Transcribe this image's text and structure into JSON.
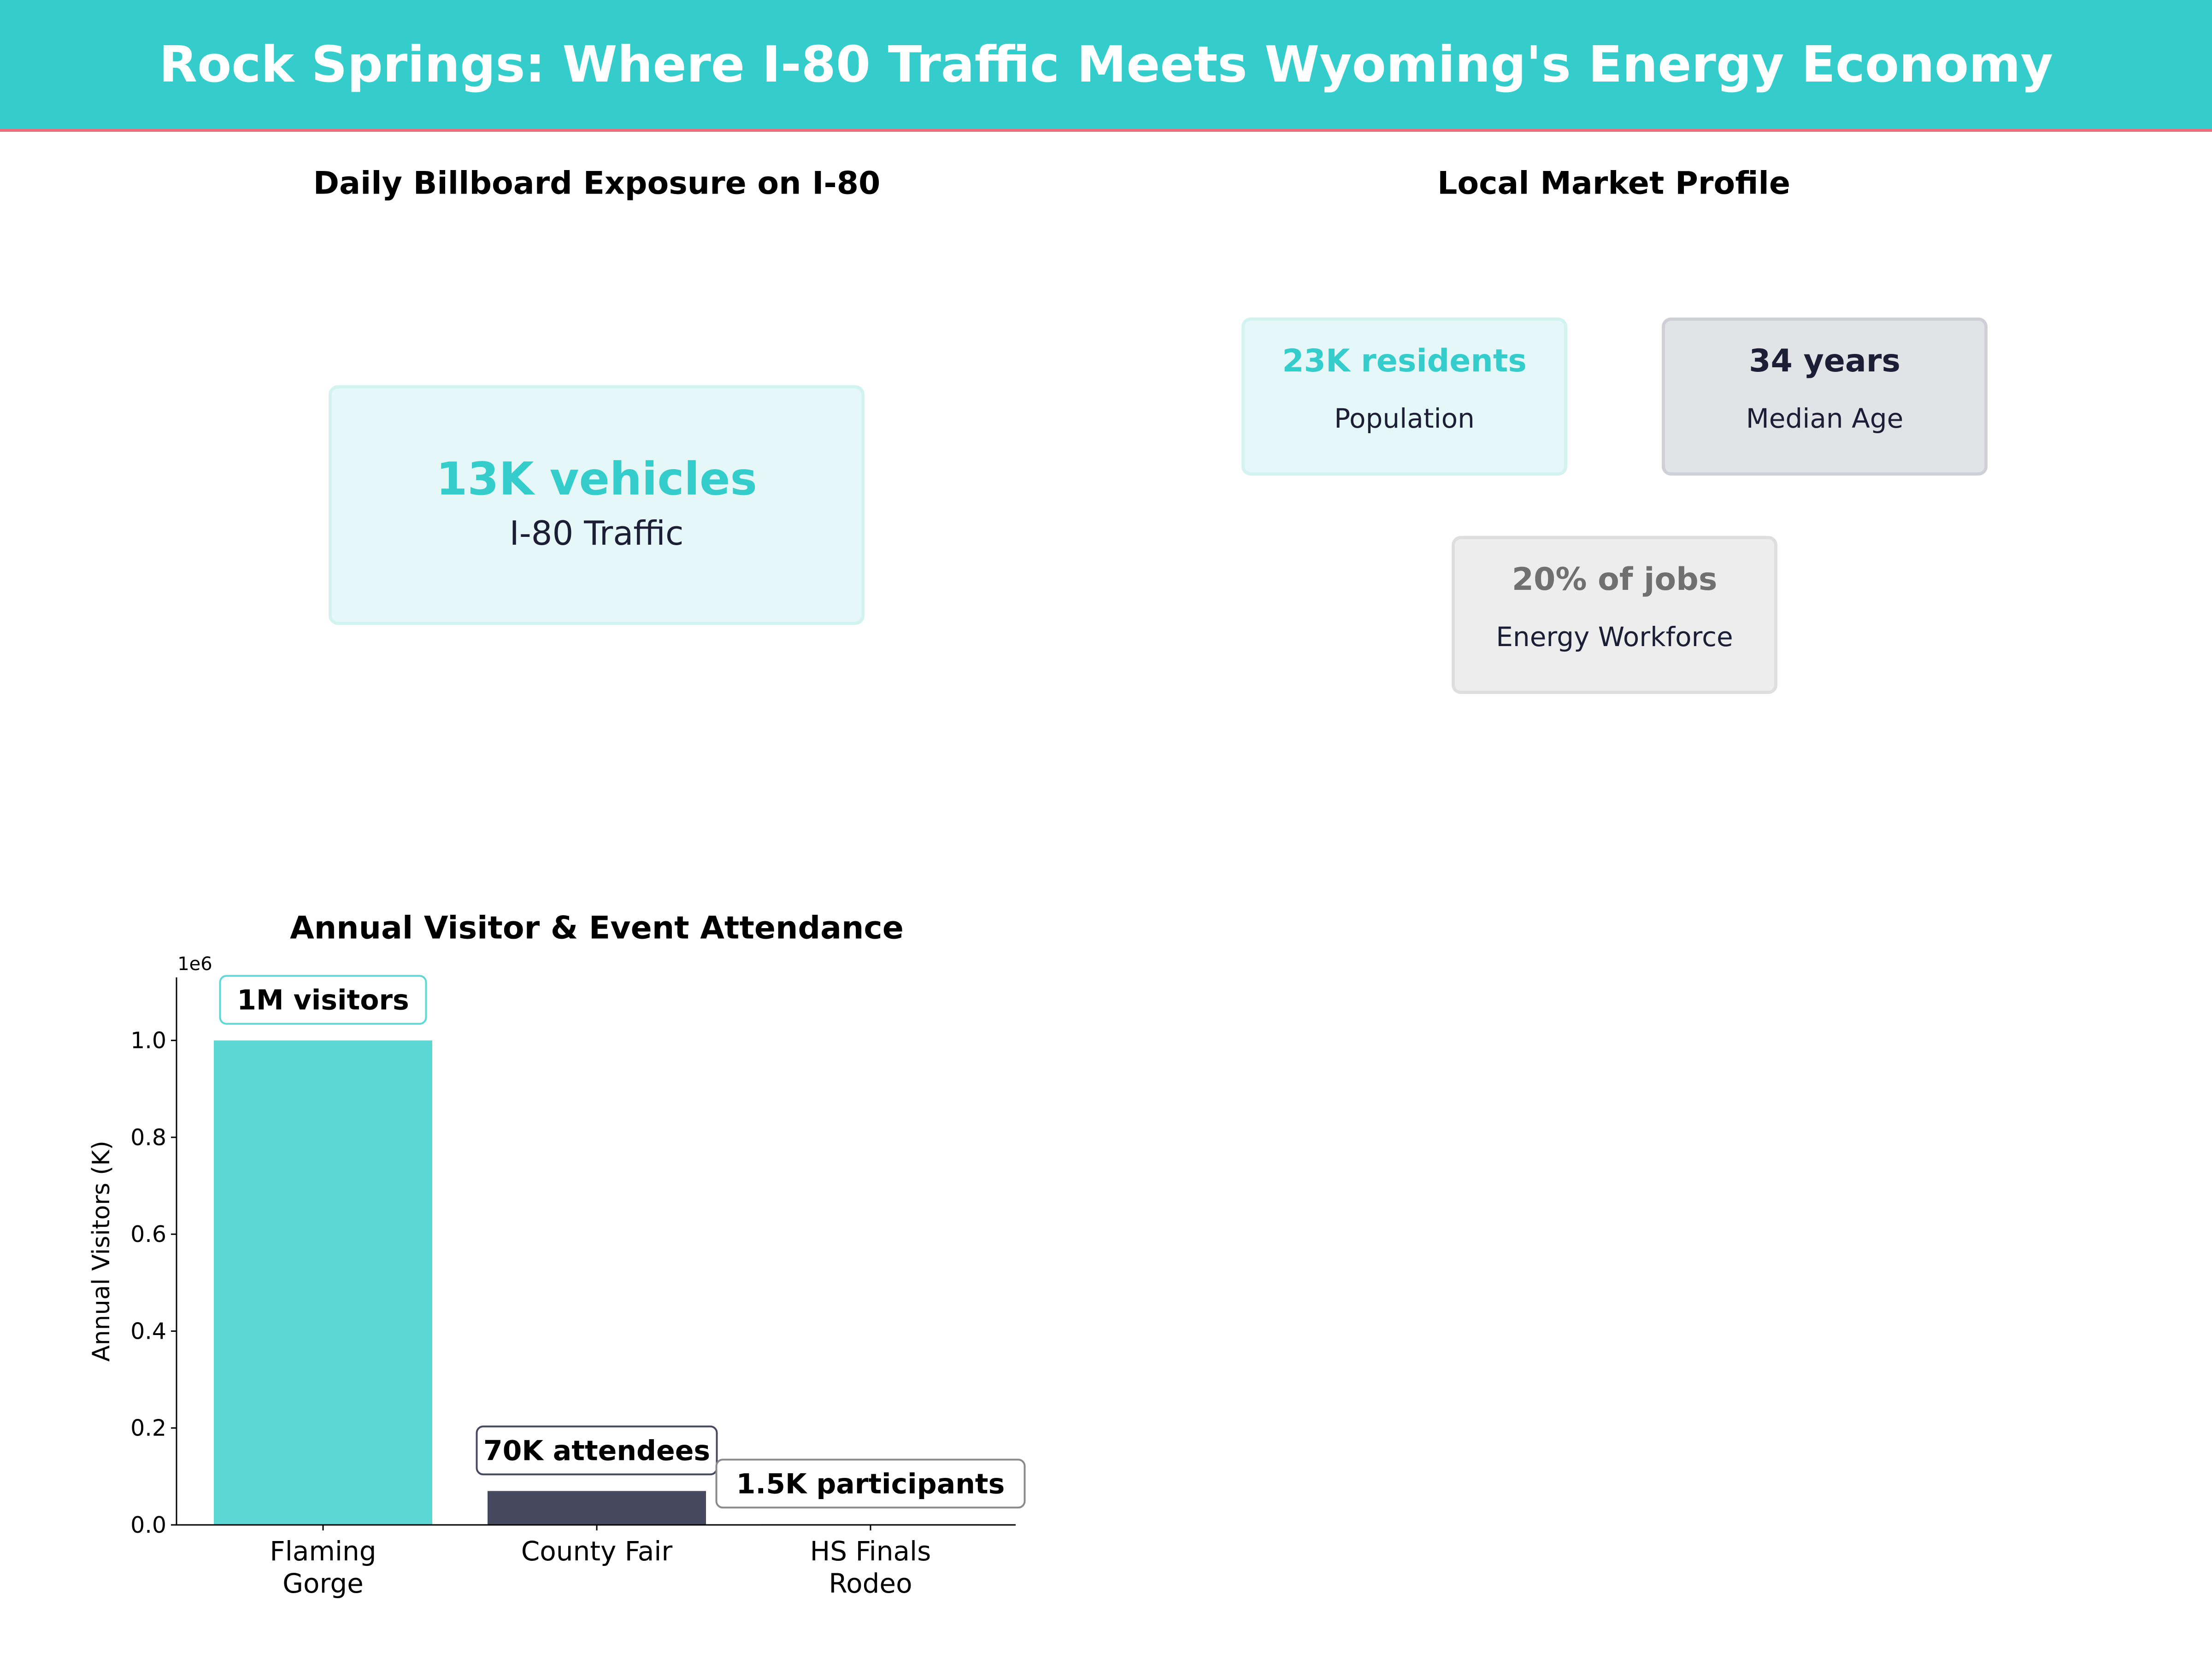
{
  "header": {
    "title": "Rock Springs: Where I-80 Traffic Meets Wyoming's Energy Economy"
  },
  "exposure": {
    "title": "Daily Billboard Exposure on I-80",
    "value": "13K vehicles",
    "label": "I-80 Traffic"
  },
  "profile": {
    "title": "Local Market Profile",
    "cards": [
      {
        "value": "23K residents",
        "label": "Population",
        "value_color": "#35CCCC",
        "bg": "#E5F7F6",
        "border": "#D3F3F1"
      },
      {
        "value": "34 years",
        "label": "Median Age",
        "value_color": "#1C1E36",
        "bg": "#E2E3E7",
        "border": "#CFCFD7"
      },
      {
        "value": "20% of jobs",
        "label": "Energy Workforce",
        "value_color": "#707070",
        "bg": "#EDEDED",
        "border": "#DEDEDE"
      }
    ]
  },
  "chart_data": {
    "type": "bar",
    "title": "Annual Visitor & Event Attendance",
    "ylabel": "Annual Visitors (K)",
    "xlabel": "",
    "offset_label": "1e6",
    "categories": [
      "Flaming\nGorge",
      "County Fair",
      "HS Finals\nRodeo"
    ],
    "values": [
      1000000,
      70000,
      1500
    ],
    "colors": [
      "#5DD8D4",
      "#474A5E",
      "#6E6E6E"
    ],
    "annotations": [
      "1M visitors",
      "70K attendees",
      "1.5K participants"
    ],
    "annotation_edge_colors": [
      "#5DD8D4",
      "#474A5E",
      "#8A8A8A"
    ],
    "ylim": [
      0,
      1130000
    ],
    "yticks": [
      0,
      200000,
      400000,
      600000,
      800000,
      1000000
    ],
    "ytick_labels": [
      "0.0",
      "0.2",
      "0.4",
      "0.6",
      "0.8",
      "1.0"
    ],
    "grid": false
  }
}
